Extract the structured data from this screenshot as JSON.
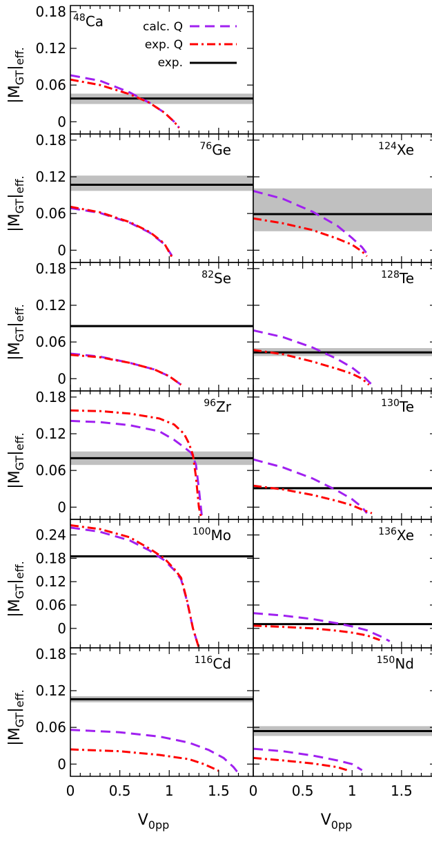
{
  "chart_data": {
    "type": "line",
    "xlabel": "V0pp",
    "ylabel": "|MGT|eff.",
    "legend": {
      "placement": "top-left-panel",
      "entries": [
        {
          "label": "calc. Q",
          "color": "#a020f0",
          "dash": "dashed"
        },
        {
          "label": "exp. Q",
          "color": "#ff0000",
          "dash": "dash-dot"
        },
        {
          "label": "exp.",
          "color": "#000000",
          "dash": "solid"
        }
      ]
    },
    "x_ticks": [
      "0",
      "0.5",
      "1",
      "1.5"
    ],
    "xlim": [
      0,
      1.85
    ],
    "band_color": "#c0c0c0",
    "panels": [
      {
        "id": "ca48",
        "row": 0,
        "col": 0,
        "mass": "48",
        "element": "Ca",
        "ylim": [
          -0.02,
          0.19
        ],
        "y_ticks": [
          {
            "v": 0,
            "l": "0"
          },
          {
            "v": 0.06,
            "l": "0.06"
          },
          {
            "v": 0.12,
            "l": "0.12"
          },
          {
            "v": 0.18,
            "l": "0.18"
          }
        ],
        "exp": 0.038,
        "exp_band": [
          0.029,
          0.046
        ],
        "calc_q": [
          [
            0,
            0.076
          ],
          [
            0.3,
            0.067
          ],
          [
            0.6,
            0.048
          ],
          [
            0.8,
            0.031
          ],
          [
            0.95,
            0.015
          ],
          [
            1.05,
            0.0
          ],
          [
            1.1,
            -0.01
          ]
        ],
        "exp_q": [
          [
            0,
            0.069
          ],
          [
            0.3,
            0.06
          ],
          [
            0.6,
            0.045
          ],
          [
            0.8,
            0.031
          ],
          [
            0.95,
            0.015
          ],
          [
            1.05,
            0.0
          ],
          [
            1.1,
            -0.01
          ]
        ]
      },
      {
        "id": "ge76",
        "row": 1,
        "col": 0,
        "mass": "76",
        "element": "Ge",
        "ylim": [
          -0.02,
          0.19
        ],
        "y_ticks": [
          {
            "v": 0,
            "l": "0"
          },
          {
            "v": 0.06,
            "l": "0.06"
          },
          {
            "v": 0.12,
            "l": "0.12"
          },
          {
            "v": 0.18,
            "l": "0.18"
          }
        ],
        "exp": 0.107,
        "exp_band": [
          0.097,
          0.122
        ],
        "calc_q": [
          [
            0,
            0.069
          ],
          [
            0.3,
            0.061
          ],
          [
            0.6,
            0.045
          ],
          [
            0.8,
            0.029
          ],
          [
            0.95,
            0.01
          ],
          [
            1.04,
            -0.012
          ]
        ],
        "exp_q": [
          [
            0,
            0.071
          ],
          [
            0.3,
            0.062
          ],
          [
            0.6,
            0.046
          ],
          [
            0.8,
            0.03
          ],
          [
            0.95,
            0.011
          ],
          [
            1.03,
            -0.012
          ]
        ]
      },
      {
        "id": "se82",
        "row": 2,
        "col": 0,
        "mass": "82",
        "element": "Se",
        "ylim": [
          -0.02,
          0.19
        ],
        "y_ticks": [
          {
            "v": 0,
            "l": "0"
          },
          {
            "v": 0.06,
            "l": "0.06"
          },
          {
            "v": 0.12,
            "l": "0.12"
          },
          {
            "v": 0.18,
            "l": "0.18"
          }
        ],
        "exp": 0.086,
        "exp_band": [
          0.084,
          0.088
        ],
        "calc_q": [
          [
            0,
            0.041
          ],
          [
            0.3,
            0.036
          ],
          [
            0.6,
            0.026
          ],
          [
            0.85,
            0.015
          ],
          [
            1.0,
            0.004
          ],
          [
            1.12,
            -0.01
          ]
        ],
        "exp_q": [
          [
            0,
            0.039
          ],
          [
            0.3,
            0.035
          ],
          [
            0.6,
            0.026
          ],
          [
            0.85,
            0.015
          ],
          [
            1.0,
            0.004
          ],
          [
            1.12,
            -0.01
          ]
        ]
      },
      {
        "id": "zr96",
        "row": 3,
        "col": 0,
        "mass": "96",
        "element": "Zr",
        "ylim": [
          -0.02,
          0.19
        ],
        "y_ticks": [
          {
            "v": 0,
            "l": "0"
          },
          {
            "v": 0.06,
            "l": "0.06"
          },
          {
            "v": 0.12,
            "l": "0.12"
          },
          {
            "v": 0.18,
            "l": "0.18"
          }
        ],
        "exp": 0.08,
        "exp_band": [
          0.069,
          0.091
        ],
        "calc_q": [
          [
            0,
            0.141
          ],
          [
            0.3,
            0.139
          ],
          [
            0.6,
            0.134
          ],
          [
            0.9,
            0.124
          ],
          [
            1.05,
            0.11
          ],
          [
            1.15,
            0.098
          ],
          [
            1.22,
            0.089
          ],
          [
            1.27,
            0.07
          ],
          [
            1.3,
            0.03
          ],
          [
            1.33,
            -0.015
          ]
        ],
        "exp_q": [
          [
            0,
            0.158
          ],
          [
            0.3,
            0.157
          ],
          [
            0.6,
            0.153
          ],
          [
            0.9,
            0.145
          ],
          [
            1.05,
            0.135
          ],
          [
            1.15,
            0.12
          ],
          [
            1.2,
            0.104
          ],
          [
            1.24,
            0.085
          ],
          [
            1.27,
            0.05
          ],
          [
            1.3,
            0.0
          ],
          [
            1.32,
            -0.015
          ]
        ]
      },
      {
        "id": "mo100",
        "row": 4,
        "col": 0,
        "mass": "100",
        "element": "Mo",
        "ylim": [
          -0.05,
          0.28
        ],
        "y_ticks": [
          {
            "v": 0,
            "l": "0"
          },
          {
            "v": 0.06,
            "l": "0.06"
          },
          {
            "v": 0.12,
            "l": "0.12"
          },
          {
            "v": 0.18,
            "l": "0.18"
          },
          {
            "v": 0.24,
            "l": "0.24"
          }
        ],
        "exp": 0.185,
        "exp_band": [
          0.182,
          0.188
        ],
        "calc_q": [
          [
            0,
            0.259
          ],
          [
            0.3,
            0.248
          ],
          [
            0.6,
            0.226
          ],
          [
            0.8,
            0.2
          ],
          [
            0.95,
            0.175
          ],
          [
            1.05,
            0.15
          ],
          [
            1.12,
            0.126
          ],
          [
            1.18,
            0.07
          ],
          [
            1.24,
            0.0
          ],
          [
            1.3,
            -0.05
          ]
        ],
        "exp_q": [
          [
            0,
            0.265
          ],
          [
            0.3,
            0.255
          ],
          [
            0.6,
            0.234
          ],
          [
            0.8,
            0.205
          ],
          [
            0.95,
            0.18
          ],
          [
            1.05,
            0.153
          ],
          [
            1.12,
            0.13
          ],
          [
            1.18,
            0.072
          ],
          [
            1.24,
            0.0
          ],
          [
            1.3,
            -0.05
          ]
        ]
      },
      {
        "id": "cd116",
        "row": 5,
        "col": 0,
        "mass": "116",
        "element": "Cd",
        "ylim": [
          -0.02,
          0.19
        ],
        "y_ticks": [
          {
            "v": 0,
            "l": "0"
          },
          {
            "v": 0.06,
            "l": "0.06"
          },
          {
            "v": 0.12,
            "l": "0.12"
          },
          {
            "v": 0.18,
            "l": "0.18"
          }
        ],
        "exp": 0.106,
        "exp_band": [
          0.101,
          0.111
        ],
        "calc_q": [
          [
            0,
            0.056
          ],
          [
            0.5,
            0.052
          ],
          [
            0.9,
            0.045
          ],
          [
            1.2,
            0.035
          ],
          [
            1.4,
            0.023
          ],
          [
            1.55,
            0.01
          ],
          [
            1.65,
            -0.005
          ],
          [
            1.7,
            -0.015
          ]
        ],
        "exp_q": [
          [
            0,
            0.024
          ],
          [
            0.5,
            0.021
          ],
          [
            0.9,
            0.015
          ],
          [
            1.2,
            0.008
          ],
          [
            1.35,
            0.0
          ],
          [
            1.5,
            -0.011
          ]
        ]
      },
      {
        "id": "xe124",
        "row": 1,
        "col": 1,
        "mass": "124",
        "element": "Xe",
        "ylim": [
          -0.02,
          0.19
        ],
        "y_ticks": [
          {
            "v": 0,
            "l": ""
          },
          {
            "v": 0.06,
            "l": ""
          },
          {
            "v": 0.12,
            "l": ""
          },
          {
            "v": 0.18,
            "l": ""
          }
        ],
        "exp": 0.059,
        "exp_band": [
          0.031,
          0.101
        ],
        "calc_q": [
          [
            0,
            0.097
          ],
          [
            0.3,
            0.084
          ],
          [
            0.6,
            0.063
          ],
          [
            0.85,
            0.04
          ],
          [
            1.0,
            0.02
          ],
          [
            1.1,
            0.005
          ],
          [
            1.17,
            -0.01
          ]
        ],
        "exp_q": [
          [
            0,
            0.052
          ],
          [
            0.3,
            0.044
          ],
          [
            0.6,
            0.033
          ],
          [
            0.85,
            0.019
          ],
          [
            1.0,
            0.009
          ],
          [
            1.1,
            -0.002
          ],
          [
            1.15,
            -0.01
          ]
        ]
      },
      {
        "id": "te128",
        "row": 2,
        "col": 1,
        "mass": "128",
        "element": "Te",
        "ylim": [
          -0.02,
          0.19
        ],
        "y_ticks": [
          {
            "v": 0,
            "l": ""
          },
          {
            "v": 0.06,
            "l": ""
          },
          {
            "v": 0.12,
            "l": ""
          },
          {
            "v": 0.18,
            "l": ""
          }
        ],
        "exp": 0.043,
        "exp_band": [
          0.037,
          0.05
        ],
        "calc_q": [
          [
            0,
            0.079
          ],
          [
            0.3,
            0.068
          ],
          [
            0.6,
            0.051
          ],
          [
            0.85,
            0.032
          ],
          [
            1.0,
            0.018
          ],
          [
            1.12,
            0.003
          ],
          [
            1.2,
            -0.01
          ]
        ],
        "exp_q": [
          [
            0,
            0.047
          ],
          [
            0.3,
            0.04
          ],
          [
            0.6,
            0.028
          ],
          [
            0.85,
            0.016
          ],
          [
            1.0,
            0.008
          ],
          [
            1.1,
            0.0
          ],
          [
            1.17,
            -0.01
          ]
        ]
      },
      {
        "id": "te130",
        "row": 3,
        "col": 1,
        "mass": "130",
        "element": "Te",
        "ylim": [
          -0.02,
          0.19
        ],
        "y_ticks": [
          {
            "v": 0,
            "l": ""
          },
          {
            "v": 0.06,
            "l": ""
          },
          {
            "v": 0.12,
            "l": ""
          },
          {
            "v": 0.18,
            "l": ""
          }
        ],
        "exp": 0.031,
        "exp_band": [
          0.029,
          0.033
        ],
        "calc_q": [
          [
            0,
            0.078
          ],
          [
            0.3,
            0.065
          ],
          [
            0.6,
            0.047
          ],
          [
            0.85,
            0.027
          ],
          [
            1.0,
            0.013
          ],
          [
            1.1,
            0.0
          ],
          [
            1.15,
            -0.01
          ]
        ],
        "exp_q": [
          [
            0,
            0.035
          ],
          [
            0.3,
            0.029
          ],
          [
            0.6,
            0.02
          ],
          [
            0.85,
            0.01
          ],
          [
            1.0,
            0.003
          ],
          [
            1.1,
            -0.004
          ],
          [
            1.2,
            -0.01
          ]
        ]
      },
      {
        "id": "xe136",
        "row": 4,
        "col": 1,
        "mass": "136",
        "element": "Xe",
        "ylim": [
          -0.05,
          0.28
        ],
        "y_ticks": [
          {
            "v": 0,
            "l": ""
          },
          {
            "v": 0.06,
            "l": ""
          },
          {
            "v": 0.12,
            "l": ""
          },
          {
            "v": 0.18,
            "l": ""
          },
          {
            "v": 0.24,
            "l": ""
          }
        ],
        "exp": 0.011,
        "exp_band": [
          0.01,
          0.012
        ],
        "calc_q": [
          [
            0,
            0.039
          ],
          [
            0.3,
            0.033
          ],
          [
            0.6,
            0.024
          ],
          [
            0.85,
            0.013
          ],
          [
            1.0,
            0.005
          ],
          [
            1.15,
            -0.005
          ],
          [
            1.3,
            -0.022
          ],
          [
            1.38,
            -0.033
          ]
        ],
        "exp_q": [
          [
            0,
            0.007
          ],
          [
            0.3,
            0.004
          ],
          [
            0.6,
            0.0
          ],
          [
            0.85,
            -0.006
          ],
          [
            1.0,
            -0.011
          ],
          [
            1.15,
            -0.018
          ],
          [
            1.28,
            -0.03
          ]
        ]
      },
      {
        "id": "nd150",
        "row": 5,
        "col": 1,
        "mass": "150",
        "element": "Nd",
        "ylim": [
          -0.02,
          0.19
        ],
        "y_ticks": [
          {
            "v": 0,
            "l": ""
          },
          {
            "v": 0.06,
            "l": ""
          },
          {
            "v": 0.12,
            "l": ""
          },
          {
            "v": 0.18,
            "l": ""
          }
        ],
        "exp": 0.054,
        "exp_band": [
          0.046,
          0.062
        ],
        "calc_q": [
          [
            0,
            0.025
          ],
          [
            0.3,
            0.021
          ],
          [
            0.6,
            0.014
          ],
          [
            0.85,
            0.006
          ],
          [
            1.0,
            0.0
          ],
          [
            1.1,
            -0.01
          ]
        ],
        "exp_q": [
          [
            0,
            0.01
          ],
          [
            0.3,
            0.006
          ],
          [
            0.6,
            0.001
          ],
          [
            0.85,
            -0.005
          ],
          [
            0.95,
            -0.01
          ]
        ]
      }
    ]
  }
}
